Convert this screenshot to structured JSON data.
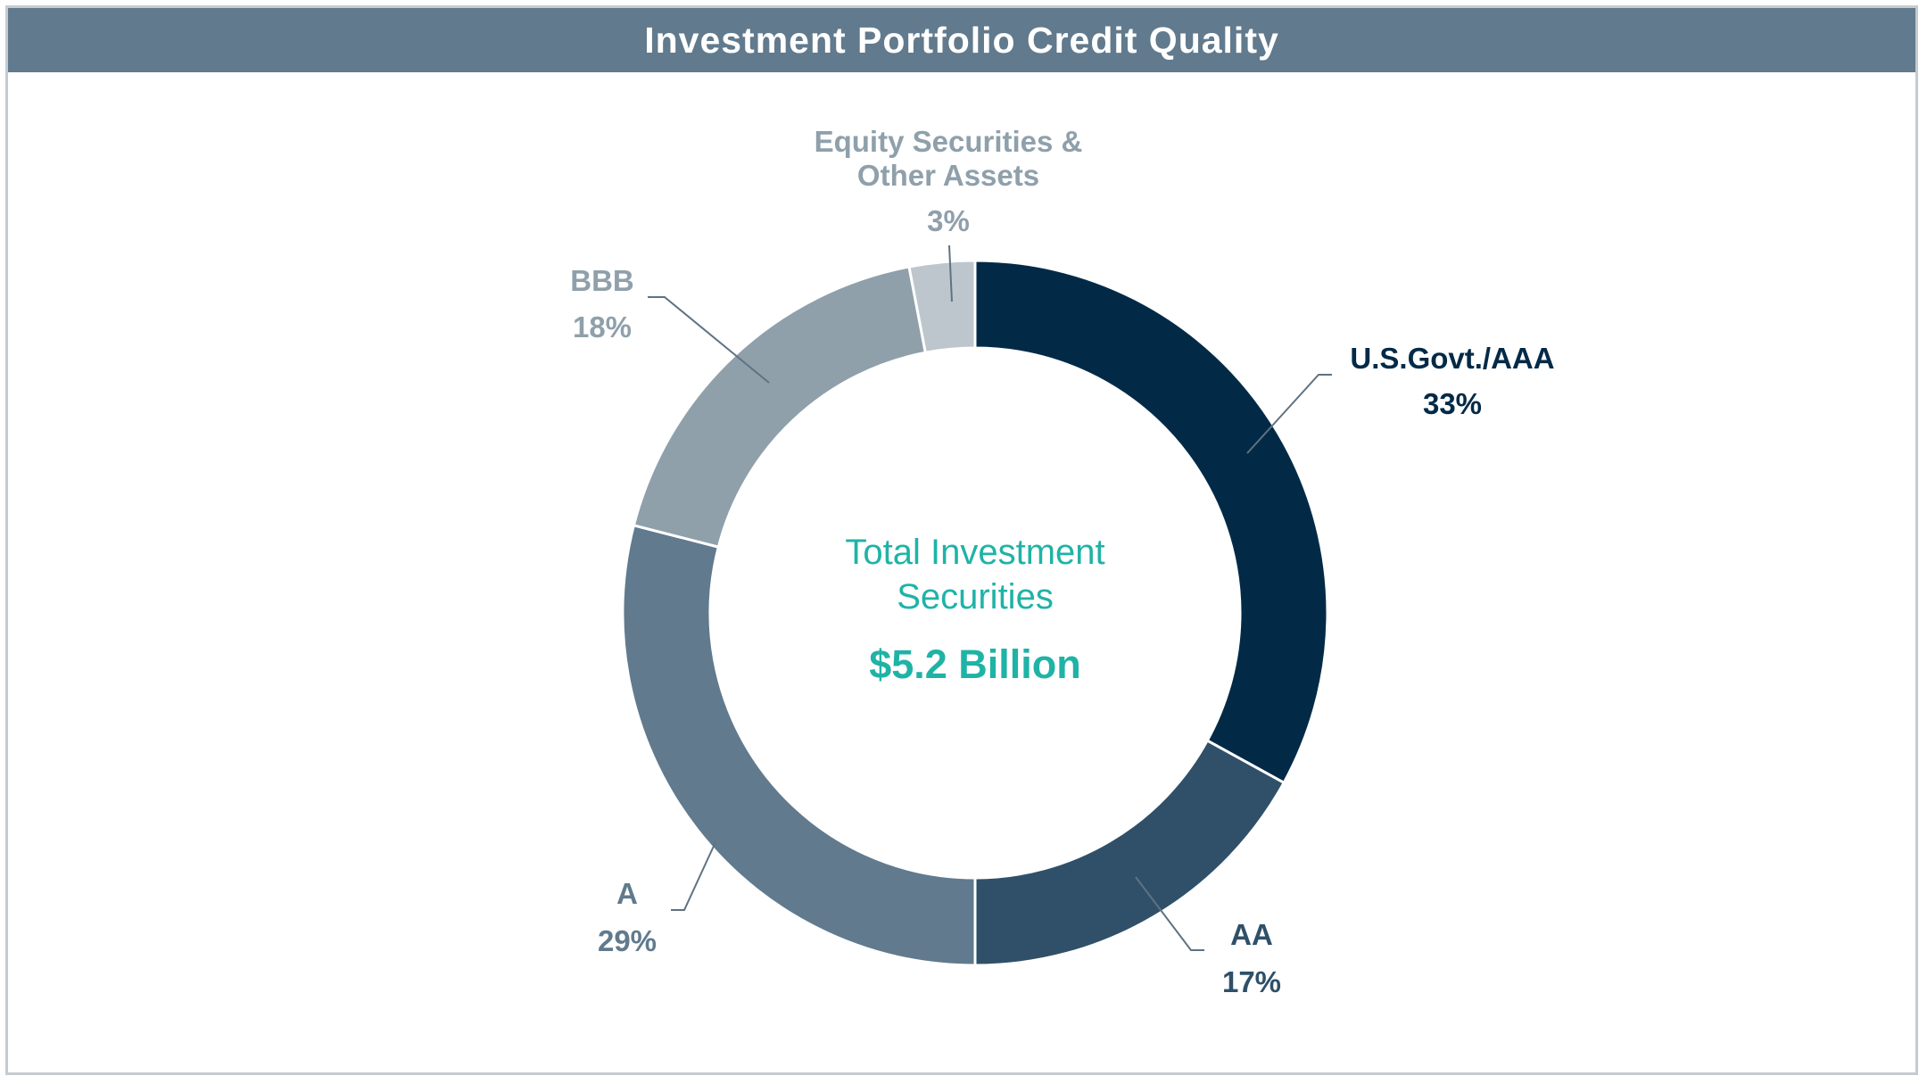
{
  "title": "Investment Portfolio Credit Quality",
  "center": {
    "line1": "Total Investment",
    "line2": "Securities",
    "total": "$5.2 Billion"
  },
  "colors": {
    "title_bg": "#617a8d",
    "center_text": "#1fb3a6",
    "us_govt_aaa": "#022a47",
    "aa": "#2f5068",
    "a": "#617a8d",
    "bbb": "#8fa0ab",
    "equity": "#bec6cd"
  },
  "chart_data": {
    "type": "pie",
    "variant": "donut",
    "title": "Investment Portfolio Credit Quality",
    "slices": [
      {
        "label": "U.S.Govt./AAA",
        "value": 33,
        "display": "33%",
        "color": "#022a47",
        "label_color": "#022a47"
      },
      {
        "label": "AA",
        "value": 17,
        "display": "17%",
        "color": "#2f5068",
        "label_color": "#2f5068"
      },
      {
        "label": "A",
        "value": 29,
        "display": "29%",
        "color": "#617a8d",
        "label_color": "#617a8d"
      },
      {
        "label": "BBB",
        "value": 18,
        "display": "18%",
        "color": "#8fa0ab",
        "label_color": "#8fa0ab"
      },
      {
        "label": "Equity Securities & Other Assets",
        "label_lines": [
          "Equity Securities &",
          "Other Assets"
        ],
        "value": 3,
        "display": "3%",
        "color": "#bec6cd",
        "label_color": "#8fa0ab"
      }
    ]
  }
}
